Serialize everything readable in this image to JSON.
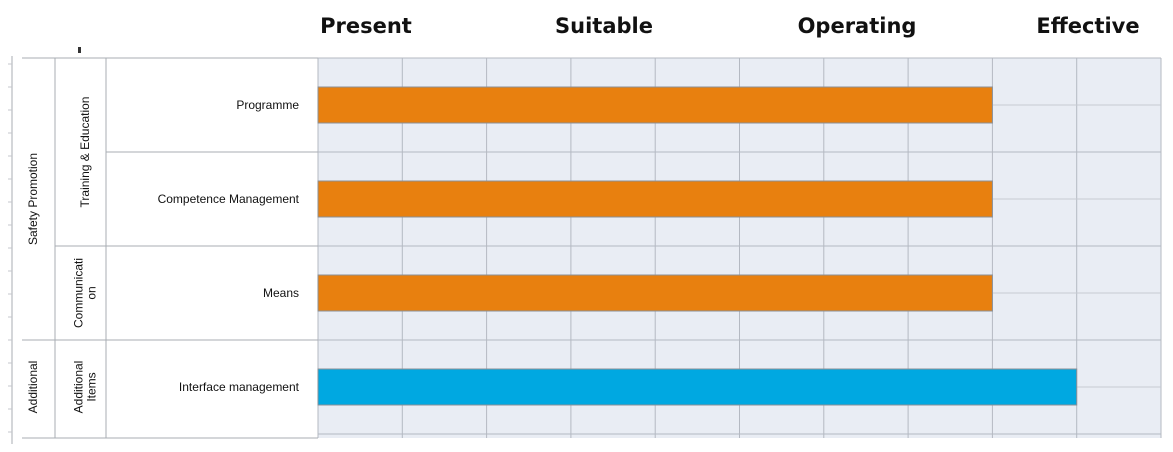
{
  "chart_data": {
    "type": "bar",
    "orientation": "horizontal",
    "headers": [
      "Present",
      "Suitable",
      "Operating",
      "Effective"
    ],
    "xlim": [
      0,
      10
    ],
    "grid": true,
    "categories": [
      "Programme",
      "Competence Management",
      "Means",
      "Interface management"
    ],
    "values": [
      8,
      8,
      8,
      9
    ],
    "colors": [
      "#e8800f",
      "#e8800f",
      "#e8800f",
      "#00a8e1"
    ],
    "groups_level1": [
      {
        "label": "Training & Education",
        "rows": [
          0,
          1
        ]
      },
      {
        "label": "Communicati on",
        "rows": [
          2
        ]
      },
      {
        "label": "Additional Items",
        "rows": [
          3
        ]
      }
    ],
    "groups_level0": [
      {
        "label": "Safety Promotion",
        "rows": [
          0,
          1,
          2
        ]
      },
      {
        "label": "Additional",
        "rows": [
          3
        ]
      }
    ]
  }
}
